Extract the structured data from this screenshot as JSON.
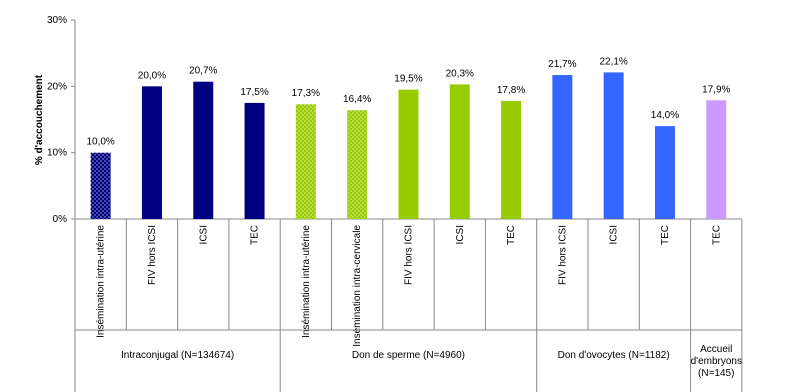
{
  "chart_data": {
    "type": "bar",
    "y_label": "% d'accouchement",
    "ylim": [
      0,
      30
    ],
    "yticks": [
      {
        "value": 0,
        "label": "0%"
      },
      {
        "value": 10,
        "label": "10%"
      },
      {
        "value": 20,
        "label": "20%"
      },
      {
        "value": 30,
        "label": "30%"
      }
    ],
    "grid": false,
    "series": [
      {
        "name": "Intraconjugal (N=134674)",
        "color": "#000080",
        "categories": [
          "Insémination intra-utérine",
          "FIV hors ICSI",
          "ICSI",
          "TEC"
        ],
        "values": [
          10.0,
          20.0,
          20.7,
          17.5
        ],
        "value_labels": [
          "10,0%",
          "20,0%",
          "20,7%",
          "17,5%"
        ],
        "patterns": [
          "dotted",
          "solid",
          "solid",
          "solid"
        ]
      },
      {
        "name": "Don de sperme (N=4960)",
        "color": "#99cc00",
        "categories": [
          "Insémination intra-utérine",
          "Insémination intra-cervicale",
          "FIV hors ICSI",
          "ICSI",
          "TEC"
        ],
        "values": [
          17.3,
          16.4,
          19.5,
          20.3,
          17.8
        ],
        "value_labels": [
          "17,3%",
          "16,4%",
          "19,5%",
          "20,3%",
          "17,8%"
        ],
        "patterns": [
          "dotted",
          "dotted",
          "solid",
          "solid",
          "solid"
        ]
      },
      {
        "name": "Don d'ovocytes (N=1182)",
        "color": "#3366ff",
        "categories": [
          "FIV hors ICSI",
          "ICSI",
          "TEC"
        ],
        "values": [
          21.7,
          22.1,
          14.0
        ],
        "value_labels": [
          "21,7%",
          "22,1%",
          "14,0%"
        ],
        "patterns": [
          "solid",
          "solid",
          "solid"
        ]
      },
      {
        "name": "Accueil d'embryons (N=145)",
        "color": "#cc99ff",
        "categories": [
          "TEC"
        ],
        "values": [
          17.9
        ],
        "value_labels": [
          "17,9%"
        ],
        "patterns": [
          "solid"
        ]
      }
    ]
  }
}
